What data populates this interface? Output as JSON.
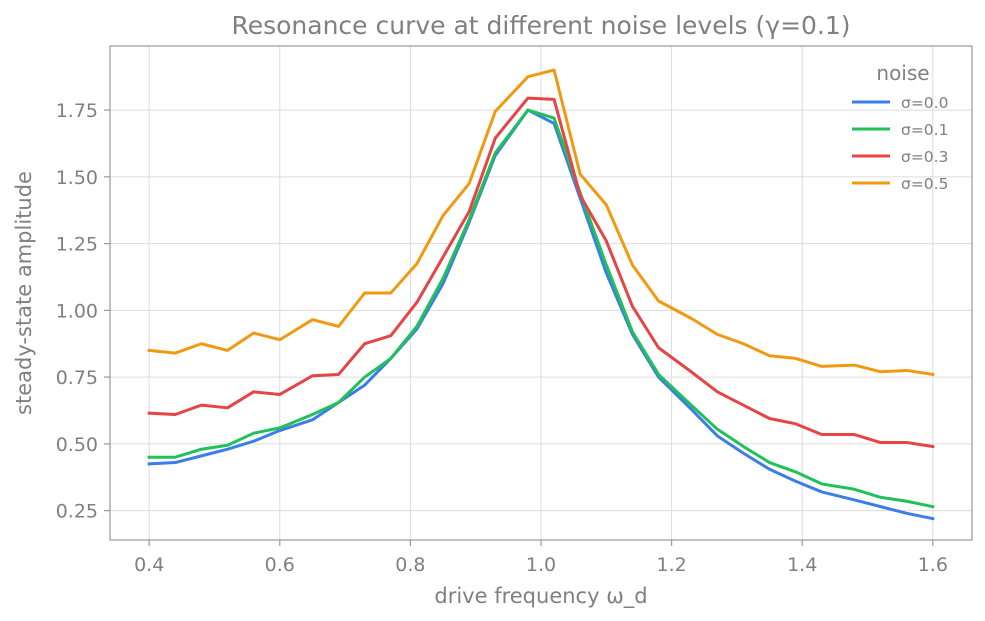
{
  "chart_data": {
    "type": "line",
    "title": "Resonance curve at different noise levels (γ=0.1)",
    "xlabel": "drive frequency ω_d",
    "ylabel": "steady-state amplitude",
    "xlim": [
      0.34,
      1.66
    ],
    "ylim": [
      0.14,
      1.99
    ],
    "xticks": [
      0.4,
      0.6,
      0.8,
      1.0,
      1.2,
      1.4,
      1.6
    ],
    "xtick_labels": [
      "0.4",
      "0.6",
      "0.8",
      "1.0",
      "1.2",
      "1.4",
      "1.6"
    ],
    "yticks": [
      0.25,
      0.5,
      0.75,
      1.0,
      1.25,
      1.5,
      1.75
    ],
    "ytick_labels": [
      "0.25",
      "0.50",
      "0.75",
      "1.00",
      "1.25",
      "1.50",
      "1.75"
    ],
    "grid": true,
    "legend": {
      "title": "noise",
      "placement": "top-right"
    },
    "x": [
      0.4,
      0.44,
      0.48,
      0.52,
      0.56,
      0.6,
      0.65,
      0.69,
      0.73,
      0.77,
      0.81,
      0.85,
      0.89,
      0.93,
      0.98,
      1.02,
      1.06,
      1.1,
      1.14,
      1.18,
      1.23,
      1.27,
      1.31,
      1.35,
      1.39,
      1.43,
      1.48,
      1.52,
      1.56,
      1.6
    ],
    "series": [
      {
        "name": "σ=0.0",
        "color": "#3b7de9",
        "values": [
          0.425,
          0.43,
          0.455,
          0.48,
          0.51,
          0.55,
          0.59,
          0.655,
          0.72,
          0.82,
          0.93,
          1.1,
          1.33,
          1.58,
          1.75,
          1.7,
          1.42,
          1.14,
          0.91,
          0.75,
          0.63,
          0.53,
          0.465,
          0.405,
          0.36,
          0.32,
          0.29,
          0.265,
          0.24,
          0.22
        ]
      },
      {
        "name": "σ=0.1",
        "color": "#22c05a",
        "values": [
          0.45,
          0.45,
          0.48,
          0.495,
          0.54,
          0.56,
          0.61,
          0.655,
          0.75,
          0.82,
          0.94,
          1.12,
          1.34,
          1.59,
          1.75,
          1.72,
          1.44,
          1.17,
          0.92,
          0.76,
          0.645,
          0.555,
          0.49,
          0.43,
          0.395,
          0.35,
          0.33,
          0.3,
          0.285,
          0.265
        ]
      },
      {
        "name": "σ=0.3",
        "color": "#e54545",
        "values": [
          0.615,
          0.61,
          0.645,
          0.635,
          0.695,
          0.685,
          0.755,
          0.76,
          0.875,
          0.905,
          1.03,
          1.2,
          1.37,
          1.645,
          1.795,
          1.79,
          1.43,
          1.26,
          1.015,
          0.86,
          0.77,
          0.695,
          0.645,
          0.595,
          0.575,
          0.535,
          0.535,
          0.505,
          0.505,
          0.49
        ]
      },
      {
        "name": "σ=0.5",
        "color": "#f09a12",
        "values": [
          0.85,
          0.84,
          0.875,
          0.85,
          0.915,
          0.89,
          0.965,
          0.94,
          1.065,
          1.065,
          1.175,
          1.355,
          1.475,
          1.745,
          1.875,
          1.9,
          1.51,
          1.395,
          1.17,
          1.035,
          0.97,
          0.91,
          0.875,
          0.83,
          0.82,
          0.79,
          0.795,
          0.77,
          0.775,
          0.76
        ]
      }
    ]
  }
}
